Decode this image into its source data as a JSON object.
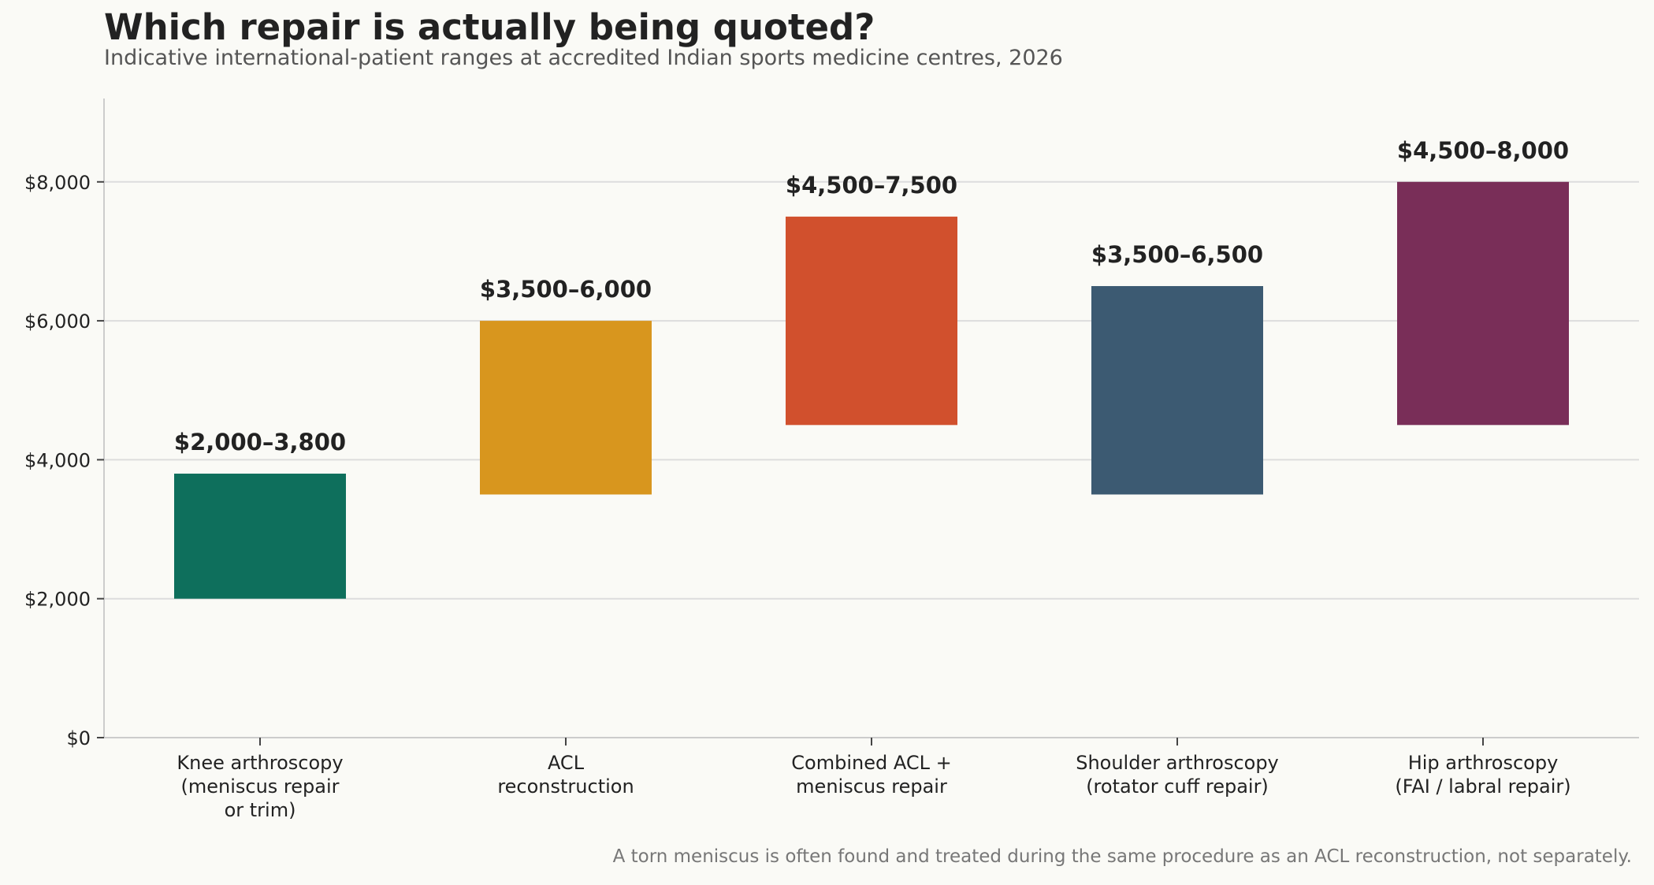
{
  "chart_data": {
    "type": "bar",
    "title": "Which repair is actually being quoted?",
    "subtitle": "Indicative international-patient ranges at accredited Indian sports medicine centres, 2026",
    "footnote": "A torn meniscus is often found and treated during the same procedure as an ACL reconstruction, not separately.",
    "xlabel": "",
    "ylabel": "",
    "ylim": [
      0,
      9200
    ],
    "yticks": [
      {
        "value": 0,
        "label": "$0"
      },
      {
        "value": 2000,
        "label": "$2,000"
      },
      {
        "value": 4000,
        "label": "$4,000"
      },
      {
        "value": 6000,
        "label": "$6,000"
      },
      {
        "value": 8000,
        "label": "$8,000"
      }
    ],
    "grid": true,
    "legend": "none",
    "categories": [
      [
        "Knee arthroscopy",
        "(meniscus repair",
        "or trim)"
      ],
      [
        "ACL",
        "reconstruction"
      ],
      [
        "Combined ACL +",
        "meniscus repair"
      ],
      [
        "Shoulder arthroscopy",
        "(rotator cuff repair)"
      ],
      [
        "Hip arthroscopy",
        "(FAI / labral repair)"
      ]
    ],
    "ranges": [
      {
        "low": 2000,
        "high": 3800,
        "label": "$2,000–3,800",
        "color": "#0e6f5c"
      },
      {
        "low": 3500,
        "high": 6000,
        "label": "$3,500–6,000",
        "color": "#d8961e"
      },
      {
        "low": 4500,
        "high": 7500,
        "label": "$4,500–7,500",
        "color": "#d1502d"
      },
      {
        "low": 3500,
        "high": 6500,
        "label": "$3,500–6,500",
        "color": "#3c5a72"
      },
      {
        "low": 4500,
        "high": 8000,
        "label": "$4,500–8,000",
        "color": "#792e58"
      }
    ]
  }
}
